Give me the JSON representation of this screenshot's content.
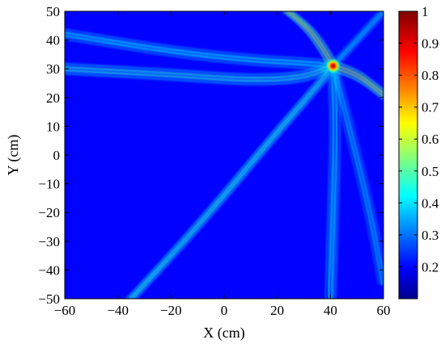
{
  "chart_data": {
    "type": "heatmap",
    "title": "",
    "xlabel": "X (cm)",
    "ylabel": "Y (cm)",
    "xlim": [
      -60,
      60
    ],
    "ylim": [
      -50,
      50
    ],
    "x_ticks": [
      -60,
      -40,
      -20,
      0,
      20,
      40,
      60
    ],
    "x_tick_labels": [
      "−60",
      "−40",
      "−20",
      "0",
      "20",
      "40",
      "60"
    ],
    "y_ticks": [
      50,
      40,
      30,
      20,
      10,
      0,
      -10,
      -20,
      -30,
      -40,
      -50
    ],
    "y_tick_labels": [
      "50",
      "40",
      "30",
      "20",
      "10",
      "0",
      "−10",
      "−20",
      "−30",
      "−40",
      "−50"
    ],
    "colorbar": {
      "min": 0.1,
      "max": 1,
      "colormap": "jet",
      "ticks": [
        1,
        0.9,
        0.8,
        0.7,
        0.6,
        0.5,
        0.4,
        0.3,
        0.2
      ],
      "tick_labels": [
        "1",
        "0.9",
        "0.8",
        "0.7",
        "0.6",
        "0.5",
        "0.4",
        "0.3",
        "0.2"
      ]
    },
    "background_level": 0.2,
    "peak": {
      "x": 41,
      "y": 31,
      "value": 1.0
    },
    "wavefront_bands": [
      {
        "direction": "upper-left",
        "points": [
          [
            -60,
            42
          ],
          [
            -20,
            36
          ],
          [
            10,
            33
          ],
          [
            30,
            32
          ],
          [
            41,
            31
          ]
        ],
        "level": 0.42
      },
      {
        "direction": "left",
        "points": [
          [
            -60,
            30
          ],
          [
            -20,
            28
          ],
          [
            10,
            26
          ],
          [
            30,
            27
          ],
          [
            41,
            31
          ]
        ],
        "level": 0.45
      },
      {
        "direction": "lower-left",
        "points": [
          [
            -35,
            -50
          ],
          [
            -10,
            -25
          ],
          [
            20,
            8
          ],
          [
            36,
            25
          ],
          [
            41,
            31
          ]
        ],
        "level": 0.45
      },
      {
        "direction": "down",
        "points": [
          [
            41,
            31
          ],
          [
            42,
            10
          ],
          [
            41,
            -20
          ],
          [
            40,
            -50
          ]
        ],
        "level": 0.42
      },
      {
        "direction": "down-right",
        "points": [
          [
            41,
            31
          ],
          [
            47,
            10
          ],
          [
            55,
            -20
          ],
          [
            60,
            -45
          ]
        ],
        "level": 0.38
      },
      {
        "direction": "upper-right",
        "points": [
          [
            41,
            31
          ],
          [
            49,
            39
          ],
          [
            56,
            46
          ],
          [
            60,
            50
          ]
        ],
        "level": 0.38
      },
      {
        "direction": "right",
        "points": [
          [
            41,
            31
          ],
          [
            50,
            28
          ],
          [
            56,
            24
          ],
          [
            60,
            21
          ]
        ],
        "level": 0.55
      },
      {
        "direction": "top",
        "points": [
          [
            24,
            50
          ],
          [
            32,
            44
          ],
          [
            38,
            36
          ],
          [
            41,
            31
          ]
        ],
        "level": 0.55
      }
    ]
  },
  "colors": {
    "background": "#0000d4",
    "colormap_stops": [
      "#00008f",
      "#0000ff",
      "#00ffff",
      "#ffff00",
      "#ff0000",
      "#800000"
    ]
  }
}
